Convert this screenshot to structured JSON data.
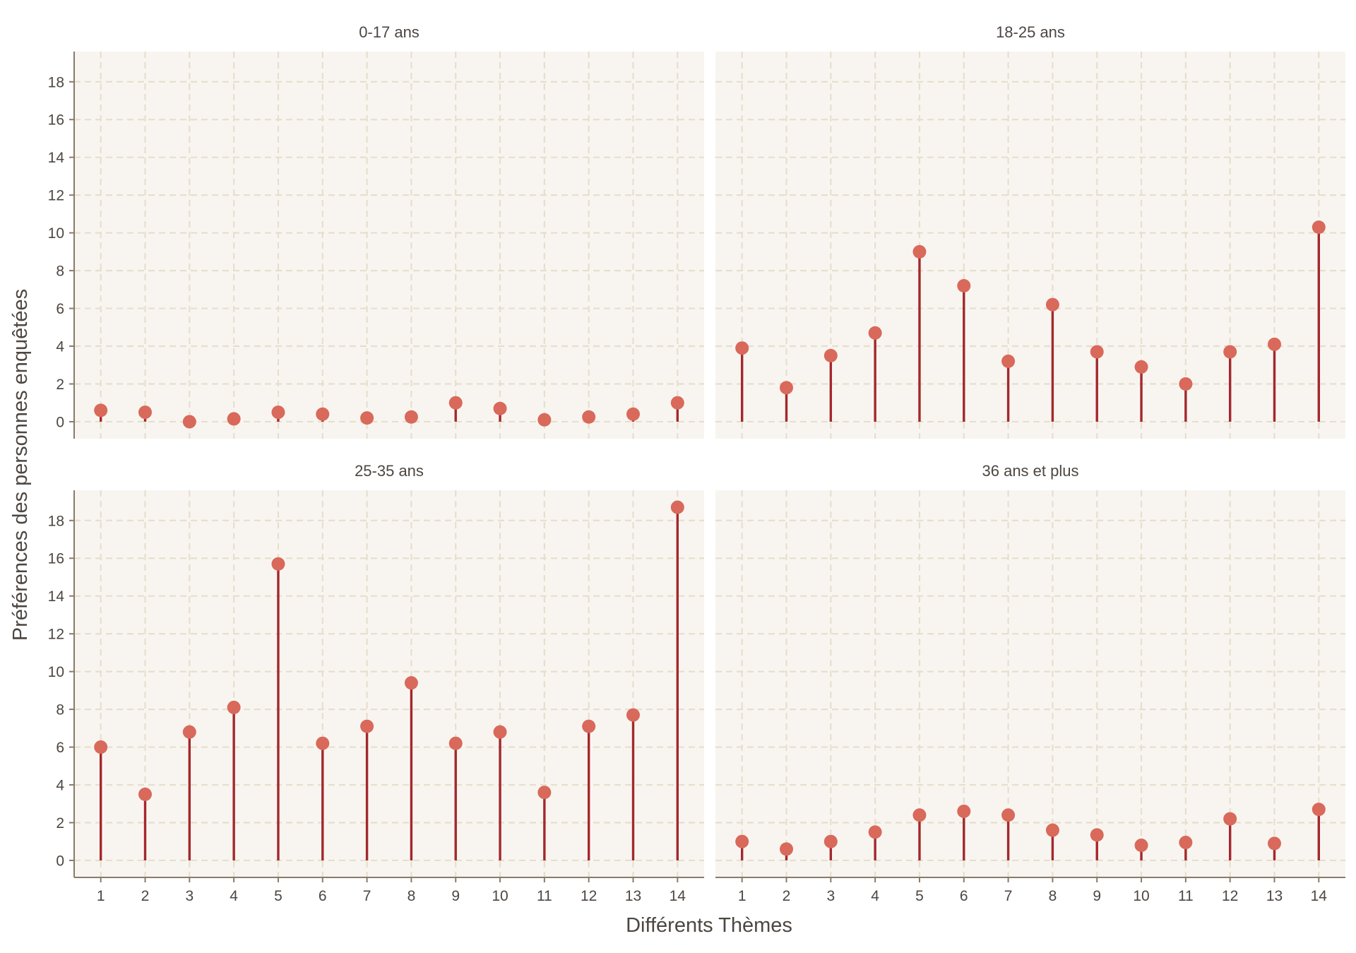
{
  "chart_data": {
    "type": "lollipop",
    "xlabel": "Différents Thèmes",
    "ylabel": "Préférences des personnes enquêtées",
    "categories": [
      "1",
      "2",
      "3",
      "4",
      "5",
      "6",
      "7",
      "8",
      "9",
      "10",
      "11",
      "12",
      "13",
      "14"
    ],
    "ylim": [
      -0.9,
      19.6
    ],
    "yticks": [
      0,
      2,
      4,
      6,
      8,
      10,
      12,
      14,
      16,
      18
    ],
    "grid": true,
    "colors": {
      "panel_bg": "#f8f5f1",
      "grid": "#e6dfcd",
      "stem": "#a3282c",
      "point": "#d9695a",
      "axis": "#8a7a6a",
      "text": "#4d4641"
    },
    "facets": [
      {
        "name": "0-17 ans",
        "values": [
          0.6,
          0.5,
          0.0,
          0.15,
          0.5,
          0.4,
          0.2,
          0.25,
          1.0,
          0.7,
          0.1,
          0.25,
          0.4,
          1.0
        ]
      },
      {
        "name": "18-25 ans",
        "values": [
          3.9,
          1.8,
          3.5,
          4.7,
          9.0,
          7.2,
          3.2,
          6.2,
          3.7,
          2.9,
          2.0,
          3.7,
          4.1,
          10.3
        ]
      },
      {
        "name": "25-35 ans",
        "values": [
          6.0,
          3.5,
          6.8,
          8.1,
          15.7,
          6.2,
          7.1,
          9.4,
          6.2,
          6.8,
          3.6,
          7.1,
          7.7,
          18.7
        ]
      },
      {
        "name": "36 ans et plus",
        "values": [
          1.0,
          0.6,
          1.0,
          1.5,
          2.4,
          2.6,
          2.4,
          1.6,
          1.35,
          0.8,
          0.95,
          2.2,
          0.9,
          2.7
        ]
      }
    ]
  }
}
